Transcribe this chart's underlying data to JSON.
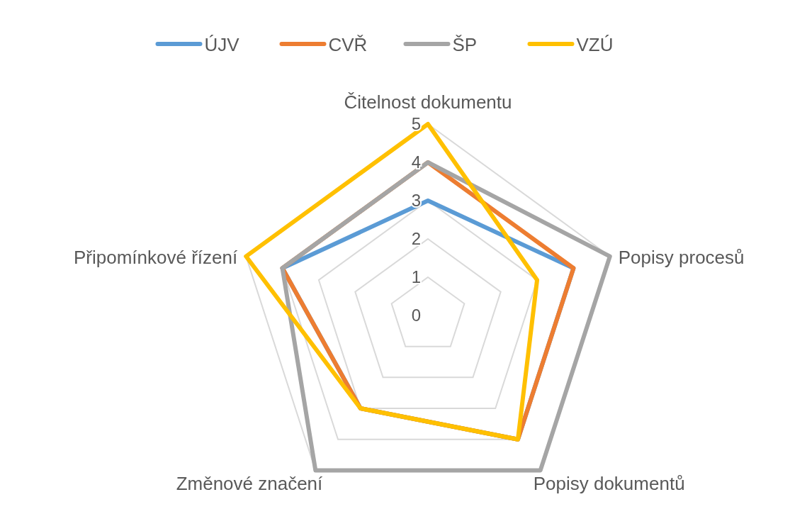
{
  "chart_data": {
    "type": "radar",
    "categories": [
      "Čitelnost dokumentu",
      "Popisy procesů",
      "Popisy dokumentů",
      "Změnové značení",
      "Připomínkové řízení"
    ],
    "series": [
      {
        "name": "ÚJV",
        "color": "#5b9bd5",
        "values": [
          3,
          4,
          4,
          3,
          4
        ]
      },
      {
        "name": "CVŘ",
        "color": "#ed7d31",
        "values": [
          4,
          4,
          4,
          3,
          4
        ]
      },
      {
        "name": "ŠP",
        "color": "#a5a5a5",
        "values": [
          4,
          5,
          5,
          5,
          4
        ]
      },
      {
        "name": "VZÚ",
        "color": "#ffc000",
        "values": [
          5,
          3,
          4,
          3,
          5
        ]
      }
    ],
    "ylim": [
      0,
      5
    ],
    "yticks": [
      0,
      1,
      2,
      3,
      4,
      5
    ],
    "grid": true,
    "legend": "top",
    "marker": "none"
  }
}
